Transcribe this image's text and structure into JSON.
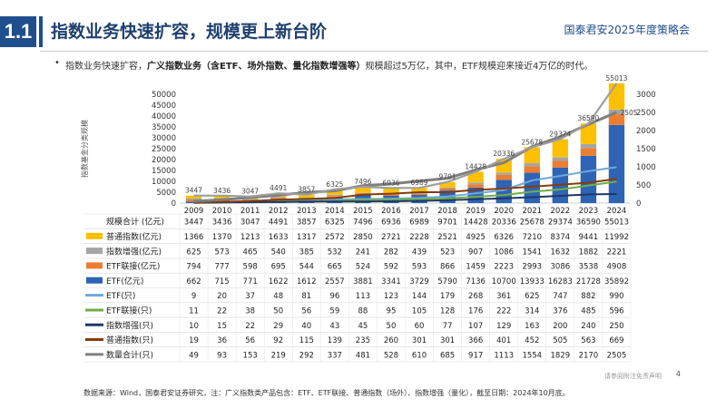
{
  "header": {
    "section_number": "1.1",
    "title": "指数业务快速扩容，规模更上新台阶",
    "brand": "国泰君安2025年度策略会"
  },
  "subtitle": {
    "lead": "指数业务快速扩容，",
    "bold": "广义指数业务（含ETF、场外指数、量化指数增强等）",
    "tail": "规模超过5万亿，其中，ETF规模迎来接近4万亿的时代。"
  },
  "footnote": "数据来源：Wind，国泰君安证券研究，注：广义指数类产品包含：ETF、ETF联接、普通指数（场外）、指数增强（量化），截至日期：2024年10月底。",
  "page_number": "4",
  "watermark_text": "请参阅附注免责声明",
  "colors": {
    "brand_blue": "#1f4e8c",
    "etf_scale": "#2e63b6",
    "etf_link_scale": "#ed7d31",
    "enhanced_scale": "#a5a5a5",
    "normal_scale": "#ffc000",
    "total_scale": "#9e9e9e",
    "etf_count": "#6fa8dc",
    "etf_link_count": "#70ad47",
    "enhanced_count": "#1f3864",
    "normal_count": "#843c0c",
    "total_count": "#7f7f7f"
  },
  "chart_data": {
    "type": "bar",
    "stacked": true,
    "categories": [
      "2009",
      "2010",
      "2011",
      "2012",
      "2013",
      "2014",
      "2015",
      "2016",
      "2017",
      "2018",
      "2019",
      "2020",
      "2021",
      "2022",
      "2023",
      "2024"
    ],
    "ylabel": "指数基金分类规模",
    "ylim": [
      0,
      50000
    ],
    "yticks": [
      0,
      5000,
      10000,
      15000,
      20000,
      25000,
      30000,
      35000,
      40000,
      45000,
      50000
    ],
    "y2lim": [
      0,
      3000
    ],
    "y2ticks": [
      0,
      500,
      1000,
      1500,
      2000,
      2500,
      3000
    ],
    "grid": false,
    "bar_series": [
      {
        "name": "ETF(亿元)",
        "values": [
          662,
          715,
          771,
          1622,
          1612,
          2557,
          3881,
          3341,
          3729,
          5790,
          7136,
          10700,
          13933,
          16283,
          21728,
          35892
        ]
      },
      {
        "name": "ETF联接(亿元)",
        "values": [
          794,
          777,
          598,
          695,
          544,
          665,
          524,
          592,
          593,
          866,
          1459,
          2223,
          2993,
          3086,
          3538,
          4908
        ]
      },
      {
        "name": "指数增强(亿元)",
        "values": [
          625,
          573,
          465,
          540,
          385,
          532,
          241,
          282,
          439,
          523,
          907,
          1086,
          1541,
          1632,
          1882,
          2221
        ]
      },
      {
        "name": "普通指数(亿元)",
        "values": [
          1366,
          1370,
          1213,
          1633,
          1317,
          2572,
          2850,
          2721,
          2228,
          2521,
          4925,
          6326,
          7210,
          8374,
          9441,
          11992
        ]
      }
    ],
    "total_line": {
      "name": "规模合计(亿元)",
      "values": [
        3447,
        3436,
        3047,
        4491,
        3857,
        6325,
        7496,
        6936,
        6989,
        9701,
        14428,
        20336,
        25678,
        29374,
        36590,
        55013
      ]
    },
    "count_series": [
      {
        "name": "ETF(只)",
        "values": [
          9,
          20,
          37,
          48,
          81,
          96,
          113,
          123,
          144,
          179,
          268,
          361,
          625,
          747,
          882,
          990
        ]
      },
      {
        "name": "ETF联接(只)",
        "values": [
          11,
          22,
          38,
          50,
          56,
          59,
          88,
          95,
          105,
          128,
          176,
          222,
          314,
          376,
          485,
          596
        ]
      },
      {
        "name": "指数增强(只)",
        "values": [
          10,
          15,
          22,
          29,
          40,
          43,
          45,
          50,
          60,
          77,
          107,
          129,
          163,
          200,
          240,
          250
        ]
      },
      {
        "name": "普通指数(只)",
        "values": [
          19,
          36,
          56,
          92,
          115,
          139,
          235,
          260,
          301,
          301,
          366,
          401,
          452,
          505,
          563,
          669
        ]
      },
      {
        "name": "数量合计(只)",
        "values": [
          49,
          93,
          153,
          219,
          292,
          337,
          481,
          528,
          610,
          685,
          917,
          1113,
          1554,
          1829,
          2170,
          2505
        ]
      }
    ],
    "table_rows": [
      {
        "label": "规模合计 (亿元)",
        "values": [
          "3447",
          "3436",
          "3047",
          "4491",
          "3857",
          "6325",
          "7496",
          "6936",
          "6989",
          "9701",
          "14428",
          "20336",
          "25678",
          "29374",
          "36590",
          "55013"
        ]
      },
      {
        "label": "普通指数(亿元)",
        "values": [
          "1366",
          "1370",
          "1213",
          "1633",
          "1317",
          "2572",
          "2850",
          "2721",
          "2228",
          "2521",
          "4925",
          "6326",
          "7210",
          "8374",
          "9441",
          "11992"
        ]
      },
      {
        "label": "指数增强(亿元)",
        "values": [
          "625",
          "573",
          "465",
          "540",
          "385",
          "532",
          "241",
          "282",
          "439",
          "523",
          "907",
          "1086",
          "1541",
          "1632",
          "1882",
          "2221"
        ]
      },
      {
        "label": "ETF联接(亿元)",
        "values": [
          "794",
          "777",
          "598",
          "695",
          "544",
          "665",
          "524",
          "592",
          "593",
          "866",
          "1459",
          "2223",
          "2993",
          "3086",
          "3538",
          "4908"
        ]
      },
      {
        "label": "ETF(亿元)",
        "values": [
          "662",
          "715",
          "771",
          "1622",
          "1612",
          "2557",
          "3881",
          "3341",
          "3729",
          "5790",
          "7136",
          "10700",
          "13933",
          "16283",
          "21728",
          "35892"
        ]
      },
      {
        "label": "ETF(只)",
        "values": [
          "9",
          "20",
          "37",
          "48",
          "81",
          "96",
          "113",
          "123",
          "144",
          "179",
          "268",
          "361",
          "625",
          "747",
          "882",
          "990"
        ]
      },
      {
        "label": "ETF联接(只)",
        "values": [
          "11",
          "22",
          "38",
          "50",
          "56",
          "59",
          "88",
          "95",
          "105",
          "128",
          "176",
          "222",
          "314",
          "376",
          "485",
          "596"
        ]
      },
      {
        "label": "指数增强(只)",
        "values": [
          "10",
          "15",
          "22",
          "29",
          "40",
          "43",
          "45",
          "50",
          "60",
          "77",
          "107",
          "129",
          "163",
          "200",
          "240",
          "250"
        ]
      },
      {
        "label": "普通指数(只)",
        "values": [
          "19",
          "36",
          "56",
          "92",
          "115",
          "139",
          "235",
          "260",
          "301",
          "301",
          "366",
          "401",
          "452",
          "505",
          "563",
          "669"
        ]
      },
      {
        "label": "数量合计(只)",
        "values": [
          "49",
          "93",
          "153",
          "219",
          "292",
          "337",
          "481",
          "528",
          "610",
          "685",
          "917",
          "1113",
          "1554",
          "1829",
          "2170",
          "2505"
        ]
      }
    ]
  }
}
